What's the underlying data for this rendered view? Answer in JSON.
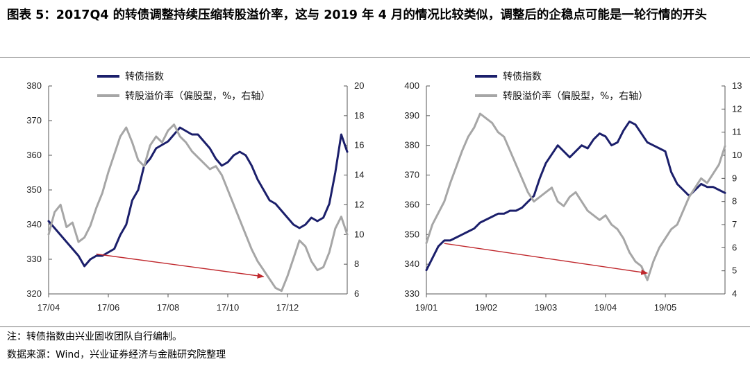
{
  "title": "图表 5：2017Q4 的转债调整持续压缩转股溢价率，这与 2019 年 4 月的情况比较类似，调整后的企稳点可能是一轮行情的开头",
  "notes": {
    "line1": "注：转债指数由兴业固收团队自行编制。",
    "line2": "数据来源：Wind，兴业证券经济与金融研究院整理"
  },
  "colors": {
    "navy": "#1b1f6b",
    "gray": "#a6a6a6",
    "arrow": "#c0282d"
  },
  "chart_data": [
    {
      "type": "line",
      "xlabels": [
        "17/04",
        "17/06",
        "17/08",
        "17/10",
        "17/12"
      ],
      "left_axis": {
        "ylim": [
          320,
          380
        ],
        "ticks": [
          "320",
          "330",
          "340",
          "350",
          "360",
          "370",
          "380"
        ]
      },
      "right_axis": {
        "ylim": [
          6,
          20
        ],
        "ticks": [
          "6",
          "8",
          "10",
          "12",
          "14",
          "16",
          "18",
          "20"
        ]
      },
      "grid": false,
      "legend_position": "top-center",
      "series": [
        {
          "name": "转债指数",
          "axis": "left",
          "x": [
            0,
            0.02,
            0.04,
            0.06,
            0.08,
            0.1,
            0.12,
            0.14,
            0.16,
            0.18,
            0.2,
            0.22,
            0.24,
            0.26,
            0.28,
            0.3,
            0.32,
            0.34,
            0.36,
            0.38,
            0.4,
            0.42,
            0.44,
            0.46,
            0.48,
            0.5,
            0.52,
            0.54,
            0.56,
            0.58,
            0.6,
            0.62,
            0.64,
            0.66,
            0.68,
            0.7,
            0.72,
            0.74,
            0.76,
            0.78,
            0.8,
            0.82,
            0.84,
            0.86,
            0.88,
            0.9,
            0.92,
            0.94,
            0.96,
            0.98,
            1.0
          ],
          "values": [
            341,
            339,
            337,
            335,
            333,
            331,
            328,
            330,
            331,
            331,
            332,
            333,
            337,
            340,
            347,
            350,
            357,
            359,
            362,
            363,
            364,
            366,
            368,
            367,
            366,
            366,
            364,
            362,
            359,
            357,
            358,
            360,
            361,
            360,
            357,
            353,
            350,
            347,
            346,
            344,
            342,
            340,
            339,
            340,
            342,
            341,
            342,
            346,
            355,
            366,
            361
          ]
        },
        {
          "name": "转股溢价率（偏股型，%，右轴）",
          "axis": "right",
          "x": [
            0,
            0.02,
            0.04,
            0.06,
            0.08,
            0.1,
            0.12,
            0.14,
            0.16,
            0.18,
            0.2,
            0.22,
            0.24,
            0.26,
            0.28,
            0.3,
            0.32,
            0.34,
            0.36,
            0.38,
            0.4,
            0.42,
            0.44,
            0.46,
            0.48,
            0.5,
            0.52,
            0.54,
            0.56,
            0.58,
            0.6,
            0.62,
            0.64,
            0.66,
            0.68,
            0.7,
            0.72,
            0.74,
            0.76,
            0.78,
            0.8,
            0.82,
            0.84,
            0.86,
            0.88,
            0.9,
            0.92,
            0.94,
            0.96,
            0.98,
            1.0
          ],
          "values": [
            10,
            11.5,
            12,
            10.5,
            10.8,
            9.5,
            9.8,
            10.6,
            11.8,
            12.8,
            14.2,
            15.4,
            16.6,
            17.2,
            16.2,
            15,
            14.6,
            16,
            16.6,
            16.2,
            17,
            17.4,
            16.6,
            16.2,
            15.6,
            15.2,
            14.8,
            14.4,
            14.6,
            14,
            13,
            12,
            11,
            10,
            9,
            8.2,
            7.6,
            7,
            6.4,
            6.2,
            7.2,
            8.4,
            9.6,
            9.2,
            8.2,
            7.6,
            7.8,
            8.8,
            10.4,
            11.2,
            10
          ]
        }
      ],
      "annotation": {
        "type": "arrow",
        "from": [
          0.16,
          331.5
        ],
        "to": [
          0.72,
          325
        ]
      }
    },
    {
      "type": "line",
      "xlabels": [
        "19/01",
        "19/02",
        "19/03",
        "19/04",
        "19/05"
      ],
      "left_axis": {
        "ylim": [
          330,
          400
        ],
        "ticks": [
          "330",
          "340",
          "350",
          "360",
          "370",
          "380",
          "390",
          "400"
        ]
      },
      "right_axis": {
        "ylim": [
          4,
          13
        ],
        "ticks": [
          "4",
          "5",
          "6",
          "7",
          "8",
          "9",
          "10",
          "11",
          "12",
          "13"
        ]
      },
      "grid": false,
      "legend_position": "top-center",
      "series": [
        {
          "name": "转债指数",
          "axis": "left",
          "x": [
            0,
            0.02,
            0.04,
            0.06,
            0.08,
            0.1,
            0.12,
            0.14,
            0.16,
            0.18,
            0.2,
            0.22,
            0.24,
            0.26,
            0.28,
            0.3,
            0.32,
            0.34,
            0.36,
            0.38,
            0.4,
            0.42,
            0.44,
            0.46,
            0.48,
            0.5,
            0.52,
            0.54,
            0.56,
            0.58,
            0.6,
            0.62,
            0.64,
            0.66,
            0.68,
            0.7,
            0.72,
            0.74,
            0.76,
            0.78,
            0.8,
            0.82,
            0.84,
            0.86,
            0.88,
            0.9,
            0.92,
            0.94,
            0.96,
            0.98,
            1.0
          ],
          "values": [
            338,
            342,
            346,
            348,
            348,
            349,
            350,
            351,
            352,
            354,
            355,
            356,
            357,
            357,
            358,
            358,
            359,
            361,
            363,
            369,
            374,
            377,
            380,
            378,
            376,
            378,
            380,
            379,
            382,
            384,
            383,
            380,
            381,
            385,
            388,
            387,
            384,
            381,
            380,
            379,
            378,
            371,
            367,
            365,
            363,
            365,
            367,
            366,
            366,
            365,
            364
          ]
        },
        {
          "name": "转股溢价率（偏股型，%，右轴）",
          "axis": "right",
          "x": [
            0,
            0.02,
            0.04,
            0.06,
            0.08,
            0.1,
            0.12,
            0.14,
            0.16,
            0.18,
            0.2,
            0.22,
            0.24,
            0.26,
            0.28,
            0.3,
            0.32,
            0.34,
            0.36,
            0.38,
            0.4,
            0.42,
            0.44,
            0.46,
            0.48,
            0.5,
            0.52,
            0.54,
            0.56,
            0.58,
            0.6,
            0.62,
            0.64,
            0.66,
            0.68,
            0.7,
            0.72,
            0.74,
            0.76,
            0.78,
            0.8,
            0.82,
            0.84,
            0.86,
            0.88,
            0.9,
            0.92,
            0.94,
            0.96,
            0.98,
            1.0
          ],
          "values": [
            6.2,
            7,
            7.5,
            8,
            8.8,
            9.5,
            10.2,
            10.8,
            11.2,
            11.8,
            11.6,
            11.4,
            11,
            10.8,
            10.2,
            9.6,
            9,
            8.4,
            8,
            8.2,
            8.4,
            8.6,
            8,
            7.8,
            8.2,
            8.4,
            8,
            7.6,
            7.4,
            7.2,
            7.4,
            7,
            6.8,
            6.4,
            5.8,
            5.4,
            5.2,
            4.6,
            5.4,
            6,
            6.4,
            6.8,
            7,
            7.6,
            8.2,
            8.6,
            9,
            8.8,
            9.2,
            9.6,
            10.4
          ]
        }
      ],
      "annotation": {
        "type": "arrow",
        "from": [
          0.06,
          347
        ],
        "to": [
          0.74,
          337
        ]
      }
    }
  ]
}
